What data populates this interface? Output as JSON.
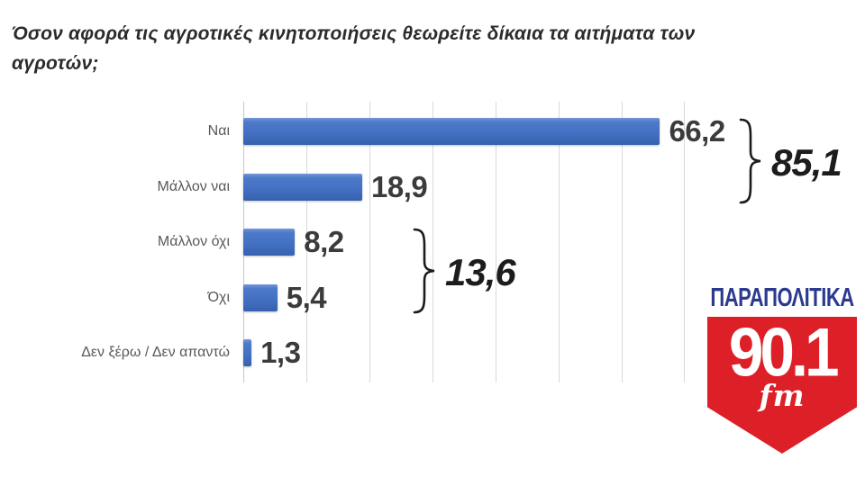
{
  "title": "Όσον αφορά τις αγροτικές κινητοποιήσεις θεωρείτε δίκαια τα αιτήματα των αγροτών;",
  "chart_data": {
    "type": "bar",
    "orientation": "horizontal",
    "title": "Όσον αφορά τις αγροτικές κινητοποιήσεις θεωρείτε δίκαια τα αιτήματα των αγροτών;",
    "categories": [
      "Ναι",
      "Μάλλον ναι",
      "Μάλλον όχι",
      "Όχι",
      "Δεν ξέρω / Δεν απαντώ"
    ],
    "values": [
      66.2,
      18.9,
      8.2,
      5.4,
      1.3
    ],
    "value_labels": [
      "66,2",
      "18,9",
      "8,2",
      "5,4",
      "1,3"
    ],
    "xlim": [
      0,
      70
    ],
    "gridline_step": 10,
    "grid": true,
    "legend": false,
    "bar_color": "#4472C4",
    "annotations": [
      {
        "label": "85,1",
        "value": 85.1,
        "covers": [
          "Ναι",
          "Μάλλον ναι"
        ]
      },
      {
        "label": "13,6",
        "value": 13.6,
        "covers": [
          "Μάλλον όχι",
          "Όχι"
        ]
      }
    ]
  },
  "logo": {
    "brand": "ΠΑΡΑΠΟΛΙΤΙΚΑ",
    "frequency": "90.1",
    "band": "fm",
    "colors": {
      "navy": "#2b3a8f",
      "red": "#dd2027"
    }
  }
}
